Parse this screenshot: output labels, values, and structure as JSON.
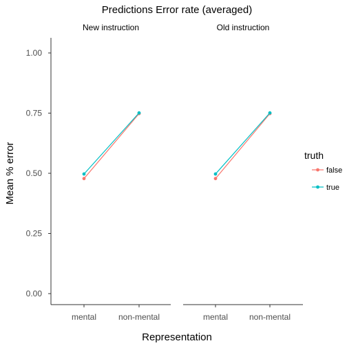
{
  "chart_data": {
    "type": "line",
    "title": "Predictions Error rate (averaged)",
    "xlabel": "Representation",
    "ylabel": "Mean % error",
    "ylim": [
      0,
      1
    ],
    "yticks": [
      "0.00",
      "0.25",
      "0.50",
      "0.75",
      "1.00"
    ],
    "yticks_values": [
      0,
      0.25,
      0.5,
      0.75,
      1.0
    ],
    "categories": [
      "mental",
      "non-mental"
    ],
    "legend": {
      "title": "truth",
      "placement": "right",
      "entries": [
        {
          "label": "false",
          "color": "#F8766D"
        },
        {
          "label": "true",
          "color": "#00BFC4"
        }
      ]
    },
    "grid": false,
    "panels": [
      {
        "title": "New instruction",
        "series": [
          {
            "name": "false",
            "color": "#F8766D",
            "values": [
              0.478,
              0.748
            ]
          },
          {
            "name": "true",
            "color": "#00BFC4",
            "values": [
              0.497,
              0.751
            ]
          }
        ]
      },
      {
        "title": "Old instruction",
        "series": [
          {
            "name": "false",
            "color": "#F8766D",
            "values": [
              0.478,
              0.748
            ]
          },
          {
            "name": "true",
            "color": "#00BFC4",
            "values": [
              0.497,
              0.751
            ]
          }
        ]
      }
    ]
  }
}
